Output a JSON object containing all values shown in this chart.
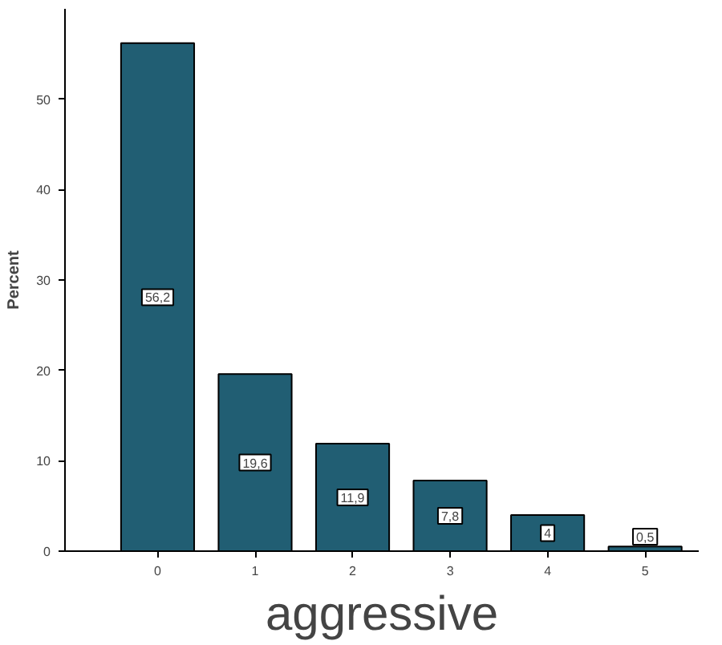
{
  "chart_data": {
    "type": "bar",
    "xlabel": "aggressive",
    "ylabel": "Percent",
    "categories": [
      "0",
      "1",
      "2",
      "3",
      "4",
      "5"
    ],
    "values": [
      56.2,
      19.6,
      11.9,
      7.8,
      4,
      0.5
    ],
    "value_labels": [
      "56,2",
      "19,6",
      "11,9",
      "7,8",
      "4",
      "0,5"
    ],
    "color": "#215e73",
    "ylim": [
      0,
      60
    ],
    "yticks": [
      0,
      10,
      20,
      30,
      40,
      50
    ],
    "grid": false
  }
}
